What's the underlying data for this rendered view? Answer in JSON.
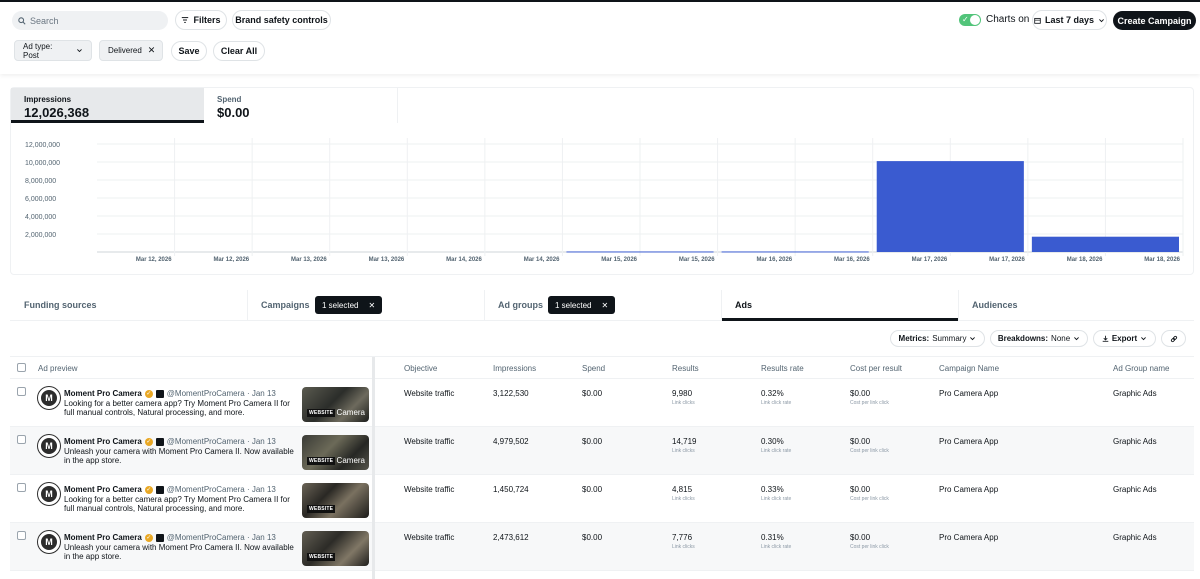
{
  "header": {
    "search_placeholder": "Search",
    "filters_label": "Filters",
    "brand_safety_label": "Brand safety controls",
    "charts_toggle_label": "Charts on",
    "date_range_label": "Last 7 days",
    "create_campaign_label": "Create Campaign"
  },
  "filters": {
    "ad_type_chip": "Ad type: Post",
    "delivered_chip": "Delivered",
    "save_label": "Save",
    "clear_all_label": "Clear All"
  },
  "metrics": {
    "impressions_label": "Impressions",
    "impressions_value": "12,026,368",
    "spend_label": "Spend",
    "spend_value": "$0.00"
  },
  "chart_data": {
    "type": "bar",
    "y_ticks": [
      "12,000,000",
      "10,000,000",
      "8,000,000",
      "6,000,000",
      "4,000,000",
      "2,000,000"
    ],
    "x_ticks": [
      "Mar 12, 2026",
      "Mar 12, 2026",
      "Mar 13, 2026",
      "Mar 13, 2026",
      "Mar 14, 2026",
      "Mar 14, 2026",
      "Mar 15, 2026",
      "Mar 15, 2026",
      "Mar 16, 2026",
      "Mar 16, 2026",
      "Mar 17, 2026",
      "Mar 17, 2026",
      "Mar 18, 2026",
      "Mar 18, 2026"
    ],
    "categories": [
      "Mar 12",
      "Mar 13",
      "Mar 14",
      "Mar 15",
      "Mar 16",
      "Mar 17",
      "Mar 18"
    ],
    "values": [
      0,
      0,
      0,
      60000,
      60000,
      10100000,
      1700000
    ],
    "ylim": [
      0,
      12000000
    ],
    "bar_color": "#3a5bd0",
    "grid": true
  },
  "tabs": {
    "funding": "Funding sources",
    "campaigns": "Campaigns",
    "campaigns_selected": "1 selected",
    "adgroups": "Ad groups",
    "adgroups_selected": "1 selected",
    "ads": "Ads",
    "audiences": "Audiences"
  },
  "toolbar": {
    "metrics_key": "Metrics:",
    "metrics_value": "Summary",
    "breakdowns_key": "Breakdowns:",
    "breakdowns_value": "None",
    "export_label": "Export"
  },
  "table": {
    "headers": {
      "ad_preview": "Ad preview",
      "objective": "Objective",
      "impressions": "Impressions",
      "spend": "Spend",
      "results": "Results",
      "results_rate": "Results rate",
      "cost_per_result": "Cost per result",
      "campaign_name": "Campaign Name",
      "ad_group_name": "Ad Group name"
    },
    "rows": [
      {
        "name": "Moment Pro Camera",
        "handle": "@MomentProCamera · Jan 13",
        "text": "Looking for a better camera app? Try Moment Pro Camera II for full manual controls, Natural processing, and more.",
        "thumb_label": "WEBSITE",
        "thumb_brand": "Camera",
        "objective": "Website traffic",
        "impressions": "3,122,530",
        "spend": "$0.00",
        "results": "9,980",
        "results_sub": "Link clicks",
        "rate": "0.32%",
        "rate_sub": "Link click rate",
        "cost": "$0.00",
        "cost_sub": "Cost per link click",
        "campaign": "Pro Camera App",
        "adgroup": "Graphic Ads"
      },
      {
        "name": "Moment Pro Camera",
        "handle": "@MomentProCamera · Jan 13",
        "text": "Unleash your camera with Moment Pro Camera II. Now available in the app store.",
        "thumb_label": "WEBSITE",
        "thumb_brand": "Camera",
        "objective": "Website traffic",
        "impressions": "4,979,502",
        "spend": "$0.00",
        "results": "14,719",
        "results_sub": "Link clicks",
        "rate": "0.30%",
        "rate_sub": "Link click rate",
        "cost": "$0.00",
        "cost_sub": "Cost per link click",
        "campaign": "Pro Camera App",
        "adgroup": "Graphic Ads"
      },
      {
        "name": "Moment Pro Camera",
        "handle": "@MomentProCamera · Jan 13",
        "text": "Looking for a better camera app? Try Moment Pro Camera II for full manual controls, Natural processing, and more.",
        "thumb_label": "WEBSITE",
        "thumb_brand": "",
        "objective": "Website traffic",
        "impressions": "1,450,724",
        "spend": "$0.00",
        "results": "4,815",
        "results_sub": "Link clicks",
        "rate": "0.33%",
        "rate_sub": "Link click rate",
        "cost": "$0.00",
        "cost_sub": "Cost per link click",
        "campaign": "Pro Camera App",
        "adgroup": "Graphic Ads"
      },
      {
        "name": "Moment Pro Camera",
        "handle": "@MomentProCamera · Jan 13",
        "text": "Unleash your camera with Moment Pro Camera II. Now available in the app store.",
        "thumb_label": "WEBSITE",
        "thumb_brand": "",
        "objective": "Website traffic",
        "impressions": "2,473,612",
        "spend": "$0.00",
        "results": "7,776",
        "results_sub": "Link clicks",
        "rate": "0.31%",
        "rate_sub": "Link click rate",
        "cost": "$0.00",
        "cost_sub": "Cost per link click",
        "campaign": "Pro Camera App",
        "adgroup": "Graphic Ads"
      }
    ]
  }
}
